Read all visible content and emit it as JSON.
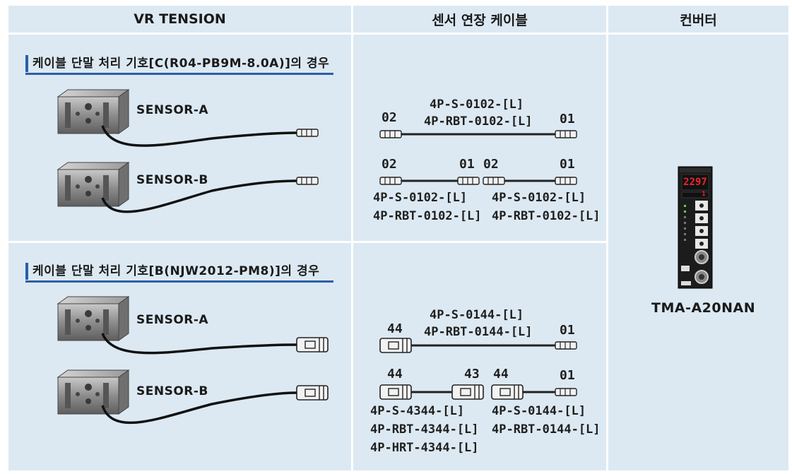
{
  "headers": {
    "col1": "VR TENSION",
    "col2": "센서 연장 케이블",
    "col3": "컨버터"
  },
  "section1": {
    "title": "케이블 단말 처리 기호[C(R04-PB9M-8.0A)]의 경우",
    "sensor_a": "SENSOR-A",
    "sensor_b": "SENSOR-B",
    "cable1": {
      "left_num": "02",
      "right_num": "01",
      "label_top": "4P-S-0102-[L]",
      "label_bottom": "4P-RBT-0102-[L]"
    },
    "cable2": {
      "nums": [
        "02",
        "01",
        "02",
        "01"
      ],
      "left_labels": [
        "4P-S-0102-[L]",
        "4P-RBT-0102-[L]"
      ],
      "right_labels": [
        "4P-S-0102-[L]",
        "4P-RBT-0102-[L]"
      ]
    }
  },
  "section2": {
    "title": "케이블 단말 처리 기호[B(NJW2012-PM8)]의 경우",
    "sensor_a": "SENSOR-A",
    "sensor_b": "SENSOR-B",
    "cable1": {
      "left_num": "44",
      "right_num": "01",
      "label_top": "4P-S-0144-[L]",
      "label_bottom": "4P-RBT-0144-[L]"
    },
    "cable2": {
      "nums": [
        "44",
        "43",
        "44",
        "01"
      ],
      "left_labels": [
        "4P-S-4344-[L]",
        "4P-RBT-4344-[L]",
        "4P-HRT-4344-[L]"
      ],
      "right_labels": [
        "4P-S-0144-[L]",
        "4P-RBT-0144-[L]"
      ]
    }
  },
  "converter": {
    "model": "TMA-A20NAN",
    "display": "2297",
    "display2": "1"
  },
  "colors": {
    "cell_bg": "#dce9f2",
    "accent": "#2a5fa8",
    "display_red": "#e8262b"
  }
}
